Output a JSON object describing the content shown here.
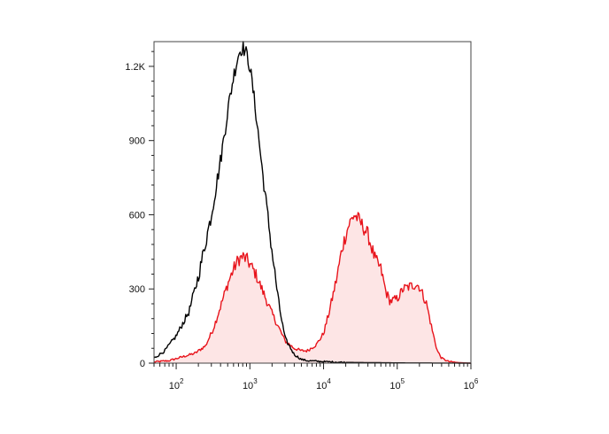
{
  "chart_data": {
    "type": "area",
    "title": "",
    "xlabel": "",
    "ylabel": "",
    "x_scale": "log",
    "xlim": [
      50,
      1000000
    ],
    "ylim": [
      0,
      1300
    ],
    "grid": false,
    "y_ticks": [
      {
        "value": 0,
        "label": "0"
      },
      {
        "value": 300,
        "label": "300"
      },
      {
        "value": 600,
        "label": "600"
      },
      {
        "value": 900,
        "label": "900"
      },
      {
        "value": 1200,
        "label": "1.2K"
      }
    ],
    "x_ticks": [
      {
        "value": 100,
        "base": "10",
        "exp": "2"
      },
      {
        "value": 1000,
        "base": "10",
        "exp": "3"
      },
      {
        "value": 10000,
        "base": "10",
        "exp": "4"
      },
      {
        "value": 100000,
        "base": "10",
        "exp": "5"
      },
      {
        "value": 1000000,
        "base": "10",
        "exp": "6"
      }
    ],
    "series": [
      {
        "color": "#000000",
        "fill": "none",
        "points": [
          [
            50,
            20
          ],
          [
            70,
            50
          ],
          [
            100,
            110
          ],
          [
            150,
            210
          ],
          [
            200,
            350
          ],
          [
            300,
            600
          ],
          [
            400,
            820
          ],
          [
            500,
            1020
          ],
          [
            600,
            1160
          ],
          [
            700,
            1250
          ],
          [
            800,
            1280
          ],
          [
            900,
            1250
          ],
          [
            1000,
            1200
          ],
          [
            1200,
            1020
          ],
          [
            1500,
            760
          ],
          [
            2000,
            450
          ],
          [
            2500,
            230
          ],
          [
            3000,
            100
          ],
          [
            4000,
            35
          ],
          [
            5000,
            15
          ],
          [
            6000,
            10
          ],
          [
            8000,
            8
          ],
          [
            10000,
            6
          ],
          [
            20000,
            3
          ],
          [
            100000,
            1
          ],
          [
            1000000,
            0
          ]
        ]
      },
      {
        "color": "#e8141c",
        "fill": "#fde5e5",
        "points": [
          [
            50,
            5
          ],
          [
            80,
            10
          ],
          [
            120,
            25
          ],
          [
            180,
            40
          ],
          [
            250,
            70
          ],
          [
            320,
            140
          ],
          [
            400,
            230
          ],
          [
            500,
            320
          ],
          [
            600,
            380
          ],
          [
            700,
            420
          ],
          [
            800,
            430
          ],
          [
            900,
            420
          ],
          [
            1000,
            400
          ],
          [
            1200,
            360
          ],
          [
            1500,
            290
          ],
          [
            2000,
            200
          ],
          [
            2500,
            140
          ],
          [
            3000,
            90
          ],
          [
            4000,
            60
          ],
          [
            5000,
            50
          ],
          [
            6000,
            50
          ],
          [
            8000,
            75
          ],
          [
            10000,
            120
          ],
          [
            12000,
            210
          ],
          [
            15000,
            340
          ],
          [
            18000,
            470
          ],
          [
            22000,
            560
          ],
          [
            26000,
            600
          ],
          [
            30000,
            580
          ],
          [
            40000,
            520
          ],
          [
            50000,
            420
          ],
          [
            60000,
            380
          ],
          [
            70000,
            290
          ],
          [
            80000,
            250
          ],
          [
            100000,
            260
          ],
          [
            120000,
            300
          ],
          [
            150000,
            310
          ],
          [
            180000,
            320
          ],
          [
            200000,
            310
          ],
          [
            250000,
            240
          ],
          [
            300000,
            130
          ],
          [
            350000,
            50
          ],
          [
            400000,
            20
          ],
          [
            500000,
            6
          ],
          [
            700000,
            2
          ],
          [
            1000000,
            0
          ]
        ]
      }
    ]
  }
}
